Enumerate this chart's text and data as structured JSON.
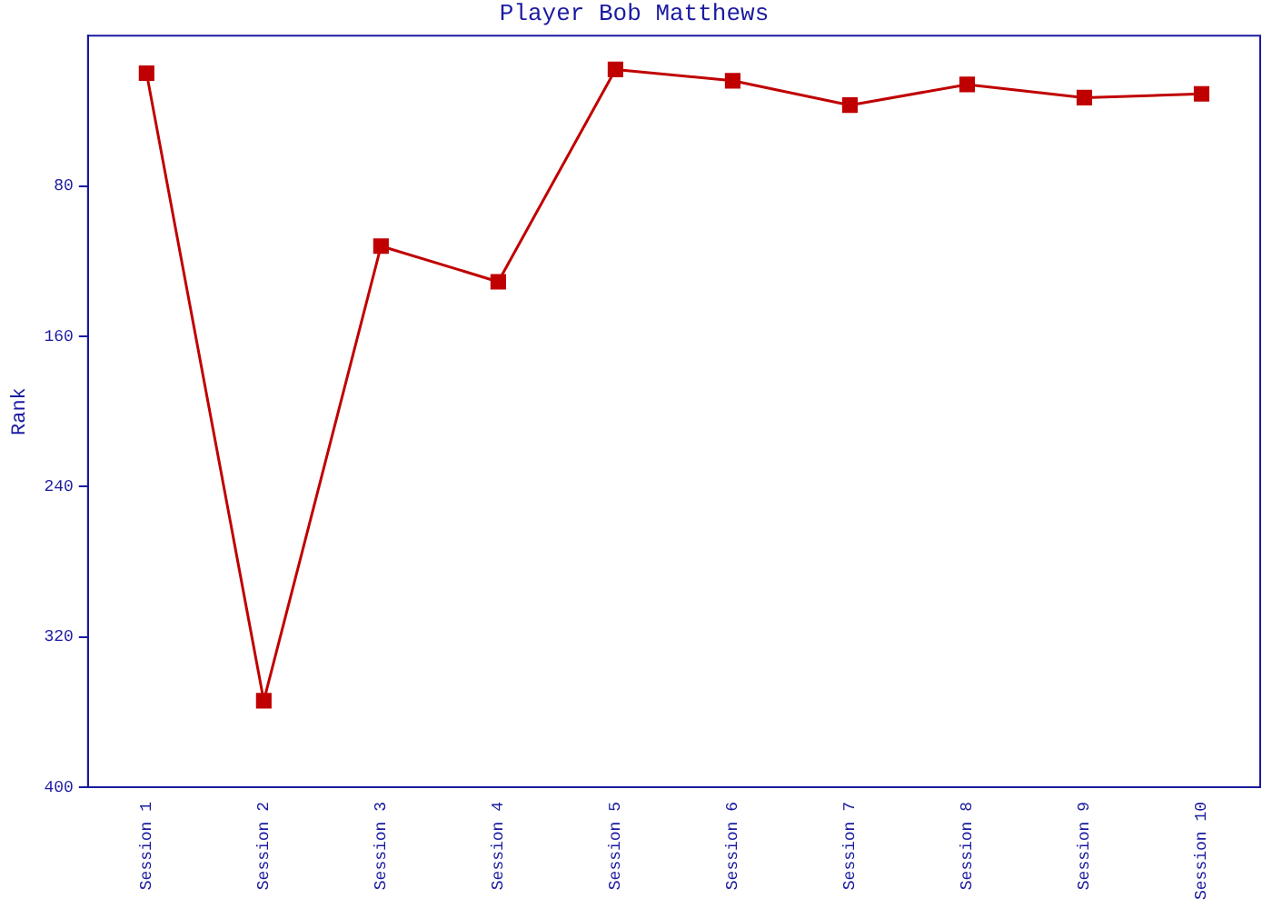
{
  "chart_data": {
    "type": "line",
    "title": "Player Bob Matthews",
    "ylabel": "Rank",
    "categories": [
      "Session 1",
      "Session 2",
      "Session 3",
      "Session 4",
      "Session 5",
      "Session 6",
      "Session 7",
      "Session 8",
      "Session 9",
      "Session 10"
    ],
    "series": [
      {
        "color": "#c00000",
        "values": [
          20,
          354,
          112,
          131,
          18,
          24,
          37,
          26,
          33,
          31
        ]
      }
    ],
    "ylim": [
      400,
      0
    ],
    "yticks": [
      80,
      160,
      240,
      320,
      400
    ],
    "grid": false,
    "legend": false,
    "marker": "square",
    "line_style": "solid"
  }
}
